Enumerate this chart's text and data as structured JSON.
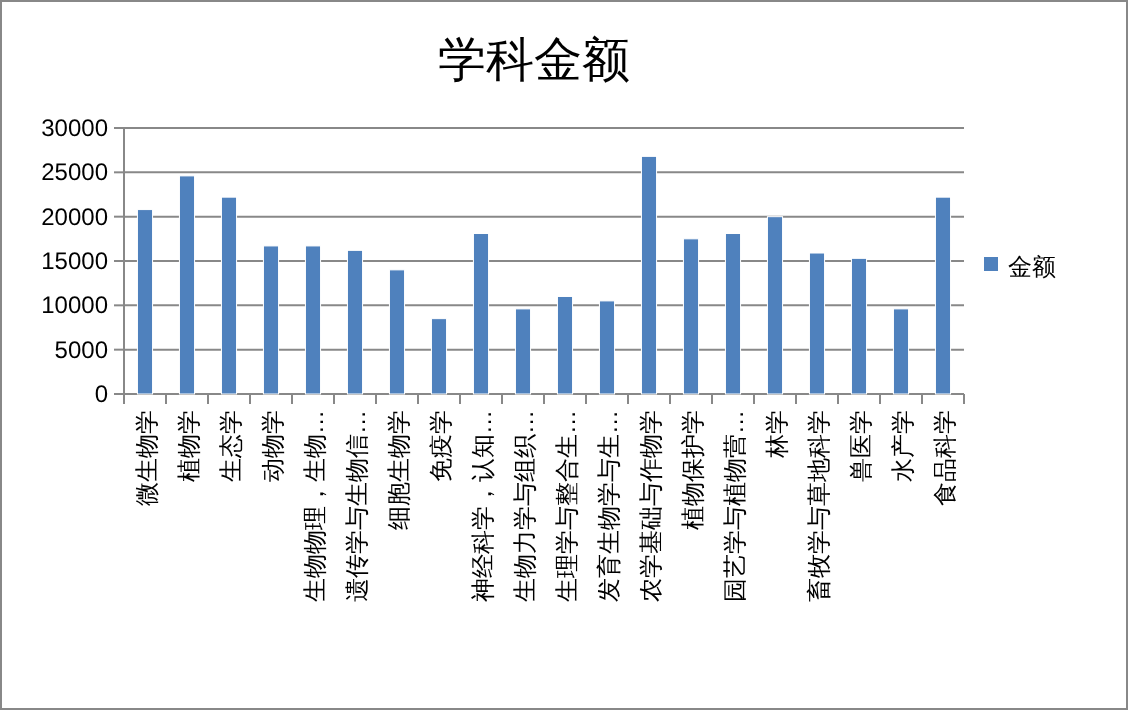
{
  "chart_data": {
    "type": "bar",
    "title": "学科金额",
    "categories": [
      "微生物学",
      "植物学",
      "生态学",
      "动物学",
      "生物物理，生物…",
      "遗传学与生物信…",
      "细胞生物学",
      "免疫学",
      "神经科学，认知…",
      "生物力学与组织…",
      "生理学与整合生…",
      "发育生物学与生…",
      "农学基础与作物学",
      "植物保护学",
      "园艺学与植物营…",
      "林学",
      "畜牧学与草地科学",
      "兽医学",
      "水产学",
      "食品科学"
    ],
    "series": [
      {
        "name": "金额",
        "color": "#4f81bd",
        "values": [
          20800,
          24600,
          22200,
          16700,
          16700,
          16200,
          14000,
          8500,
          18100,
          9600,
          11000,
          10500,
          26800,
          17500,
          18100,
          20000,
          15900,
          15300,
          9600,
          22200
        ]
      }
    ],
    "ylim": [
      0,
      30000
    ],
    "yticks": [
      0,
      5000,
      10000,
      15000,
      20000,
      25000,
      30000
    ],
    "grid": "y",
    "legend": "right"
  }
}
